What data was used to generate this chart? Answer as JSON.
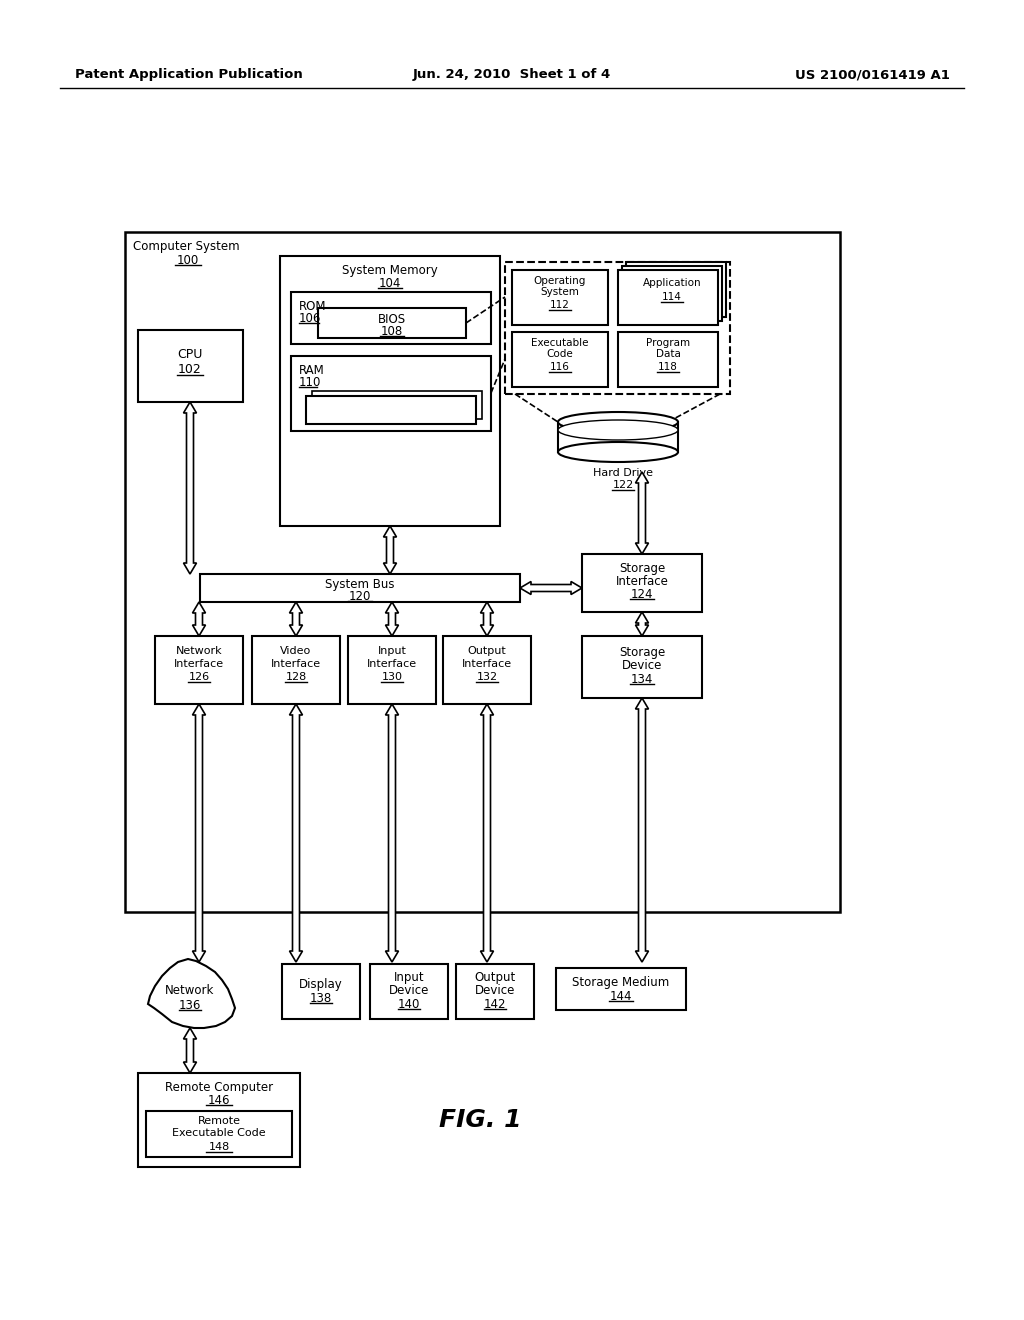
{
  "bg_color": "#ffffff",
  "header_left": "Patent Application Publication",
  "header_mid": "Jun. 24, 2010  Sheet 1 of 4",
  "header_right": "US 2100/0161419 A1",
  "fig_label": "FIG. 1"
}
